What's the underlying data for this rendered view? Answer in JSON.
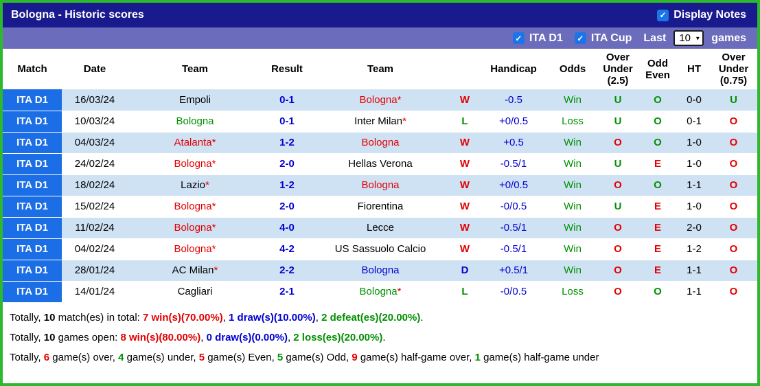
{
  "title_bar": {
    "title": "Bologna - Historic scores",
    "display_notes_label": "Display Notes",
    "display_notes_checked": true
  },
  "filter_bar": {
    "ita_d1_label": "ITA D1",
    "ita_d1_checked": true,
    "ita_cup_label": "ITA Cup",
    "ita_cup_checked": true,
    "last_label": "Last",
    "games_count": "10",
    "games_label": "games"
  },
  "icons": {
    "checkmark": "✓",
    "dropdown_arrow": "▼"
  },
  "colors": {
    "outer_border_green": "#2eb82e",
    "titlebar_navy": "#1a1a8f",
    "filterbar_purple": "#6c6cbc",
    "league_cell_blue": "#1b6ee6",
    "row_alt_blue": "#cfe2f4",
    "checkbox_blue": "#1b74e8",
    "text_red": "#e30000",
    "text_green": "#009000",
    "text_blue": "#0000d2"
  },
  "table": {
    "headers": [
      "Match",
      "Date",
      "Team",
      "Result",
      "Team",
      "",
      "Handicap",
      "Odds",
      "Over\nUnder\n(2.5)",
      "Odd\nEven",
      "HT",
      "Over\nUnder\n(0.75)"
    ],
    "rows": [
      {
        "league": "ITA D1",
        "date": "16/03/24",
        "home": {
          "name": "Empoli",
          "star": false,
          "color": "black"
        },
        "result": "0-1",
        "away": {
          "name": "Bologna",
          "star": true,
          "color": "red"
        },
        "outcome": {
          "text": "W",
          "color": "red"
        },
        "handicap": "-0.5",
        "odds": {
          "text": "Win",
          "color": "green"
        },
        "over_under_25": {
          "text": "U",
          "color": "green"
        },
        "odd_even": {
          "text": "O",
          "color": "green"
        },
        "ht": "0-0",
        "over_under_075": {
          "text": "U",
          "color": "green"
        }
      },
      {
        "league": "ITA D1",
        "date": "10/03/24",
        "home": {
          "name": "Bologna",
          "star": false,
          "color": "green"
        },
        "result": "0-1",
        "away": {
          "name": "Inter Milan",
          "star": true,
          "color": "black"
        },
        "outcome": {
          "text": "L",
          "color": "green"
        },
        "handicap": "+0/0.5",
        "odds": {
          "text": "Loss",
          "color": "green"
        },
        "over_under_25": {
          "text": "U",
          "color": "green"
        },
        "odd_even": {
          "text": "O",
          "color": "green"
        },
        "ht": "0-1",
        "over_under_075": {
          "text": "O",
          "color": "red"
        }
      },
      {
        "league": "ITA D1",
        "date": "04/03/24",
        "home": {
          "name": "Atalanta",
          "star": true,
          "color": "red"
        },
        "result": "1-2",
        "away": {
          "name": "Bologna",
          "star": false,
          "color": "red"
        },
        "outcome": {
          "text": "W",
          "color": "red"
        },
        "handicap": "+0.5",
        "odds": {
          "text": "Win",
          "color": "green"
        },
        "over_under_25": {
          "text": "O",
          "color": "red"
        },
        "odd_even": {
          "text": "O",
          "color": "green"
        },
        "ht": "1-0",
        "over_under_075": {
          "text": "O",
          "color": "red"
        }
      },
      {
        "league": "ITA D1",
        "date": "24/02/24",
        "home": {
          "name": "Bologna",
          "star": true,
          "color": "red"
        },
        "result": "2-0",
        "away": {
          "name": "Hellas Verona",
          "star": false,
          "color": "black"
        },
        "outcome": {
          "text": "W",
          "color": "red"
        },
        "handicap": "-0.5/1",
        "odds": {
          "text": "Win",
          "color": "green"
        },
        "over_under_25": {
          "text": "U",
          "color": "green"
        },
        "odd_even": {
          "text": "E",
          "color": "red"
        },
        "ht": "1-0",
        "over_under_075": {
          "text": "O",
          "color": "red"
        }
      },
      {
        "league": "ITA D1",
        "date": "18/02/24",
        "home": {
          "name": "Lazio",
          "star": true,
          "color": "black"
        },
        "result": "1-2",
        "away": {
          "name": "Bologna",
          "star": false,
          "color": "red"
        },
        "outcome": {
          "text": "W",
          "color": "red"
        },
        "handicap": "+0/0.5",
        "odds": {
          "text": "Win",
          "color": "green"
        },
        "over_under_25": {
          "text": "O",
          "color": "red"
        },
        "odd_even": {
          "text": "O",
          "color": "green"
        },
        "ht": "1-1",
        "over_under_075": {
          "text": "O",
          "color": "red"
        }
      },
      {
        "league": "ITA D1",
        "date": "15/02/24",
        "home": {
          "name": "Bologna",
          "star": true,
          "color": "red"
        },
        "result": "2-0",
        "away": {
          "name": "Fiorentina",
          "star": false,
          "color": "black"
        },
        "outcome": {
          "text": "W",
          "color": "red"
        },
        "handicap": "-0/0.5",
        "odds": {
          "text": "Win",
          "color": "green"
        },
        "over_under_25": {
          "text": "U",
          "color": "green"
        },
        "odd_even": {
          "text": "E",
          "color": "red"
        },
        "ht": "1-0",
        "over_under_075": {
          "text": "O",
          "color": "red"
        }
      },
      {
        "league": "ITA D1",
        "date": "11/02/24",
        "home": {
          "name": "Bologna",
          "star": true,
          "color": "red"
        },
        "result": "4-0",
        "away": {
          "name": "Lecce",
          "star": false,
          "color": "black"
        },
        "outcome": {
          "text": "W",
          "color": "red"
        },
        "handicap": "-0.5/1",
        "odds": {
          "text": "Win",
          "color": "green"
        },
        "over_under_25": {
          "text": "O",
          "color": "red"
        },
        "odd_even": {
          "text": "E",
          "color": "red"
        },
        "ht": "2-0",
        "over_under_075": {
          "text": "O",
          "color": "red"
        }
      },
      {
        "league": "ITA D1",
        "date": "04/02/24",
        "home": {
          "name": "Bologna",
          "star": true,
          "color": "red"
        },
        "result": "4-2",
        "away": {
          "name": "US Sassuolo Calcio",
          "star": false,
          "color": "black"
        },
        "outcome": {
          "text": "W",
          "color": "red"
        },
        "handicap": "-0.5/1",
        "odds": {
          "text": "Win",
          "color": "green"
        },
        "over_under_25": {
          "text": "O",
          "color": "red"
        },
        "odd_even": {
          "text": "E",
          "color": "red"
        },
        "ht": "1-2",
        "over_under_075": {
          "text": "O",
          "color": "red"
        }
      },
      {
        "league": "ITA D1",
        "date": "28/01/24",
        "home": {
          "name": "AC Milan",
          "star": true,
          "color": "black"
        },
        "result": "2-2",
        "away": {
          "name": "Bologna",
          "star": false,
          "color": "blue"
        },
        "outcome": {
          "text": "D",
          "color": "blue"
        },
        "handicap": "+0.5/1",
        "odds": {
          "text": "Win",
          "color": "green"
        },
        "over_under_25": {
          "text": "O",
          "color": "red"
        },
        "odd_even": {
          "text": "E",
          "color": "red"
        },
        "ht": "1-1",
        "over_under_075": {
          "text": "O",
          "color": "red"
        }
      },
      {
        "league": "ITA D1",
        "date": "14/01/24",
        "home": {
          "name": "Cagliari",
          "star": false,
          "color": "black"
        },
        "result": "2-1",
        "away": {
          "name": "Bologna",
          "star": true,
          "color": "green"
        },
        "outcome": {
          "text": "L",
          "color": "green"
        },
        "handicap": "-0/0.5",
        "odds": {
          "text": "Loss",
          "color": "green"
        },
        "over_under_25": {
          "text": "O",
          "color": "red"
        },
        "odd_even": {
          "text": "O",
          "color": "green"
        },
        "ht": "1-1",
        "over_under_075": {
          "text": "O",
          "color": "red"
        }
      }
    ]
  },
  "summary": {
    "lines": [
      [
        {
          "text": "Totally, "
        },
        {
          "text": "10",
          "bold": true
        },
        {
          "text": " match(es) in total: "
        },
        {
          "text": "7 win(s)(70.00%)",
          "color": "red",
          "bold": true
        },
        {
          "text": ", "
        },
        {
          "text": "1 draw(s)(10.00%)",
          "color": "blue",
          "bold": true
        },
        {
          "text": ", "
        },
        {
          "text": "2 defeat(es)(20.00%)",
          "color": "green",
          "bold": true
        },
        {
          "text": "."
        }
      ],
      [
        {
          "text": "Totally, "
        },
        {
          "text": "10",
          "bold": true
        },
        {
          "text": " games open: "
        },
        {
          "text": "8 win(s)(80.00%)",
          "color": "red",
          "bold": true
        },
        {
          "text": ", "
        },
        {
          "text": "0 draw(s)(0.00%)",
          "color": "blue",
          "bold": true
        },
        {
          "text": ", "
        },
        {
          "text": "2 loss(es)(20.00%)",
          "color": "green",
          "bold": true
        },
        {
          "text": "."
        }
      ],
      [
        {
          "text": "Totally, "
        },
        {
          "text": "6",
          "color": "red",
          "bold": true
        },
        {
          "text": " game(s) over, "
        },
        {
          "text": "4",
          "color": "green",
          "bold": true
        },
        {
          "text": " game(s) under, "
        },
        {
          "text": "5",
          "color": "red",
          "bold": true
        },
        {
          "text": " game(s) Even, "
        },
        {
          "text": "5",
          "color": "green",
          "bold": true
        },
        {
          "text": " game(s) Odd, "
        },
        {
          "text": "9",
          "color": "red",
          "bold": true
        },
        {
          "text": " game(s) half-game over, "
        },
        {
          "text": "1",
          "color": "green",
          "bold": true
        },
        {
          "text": " game(s) half-game under"
        }
      ]
    ]
  }
}
